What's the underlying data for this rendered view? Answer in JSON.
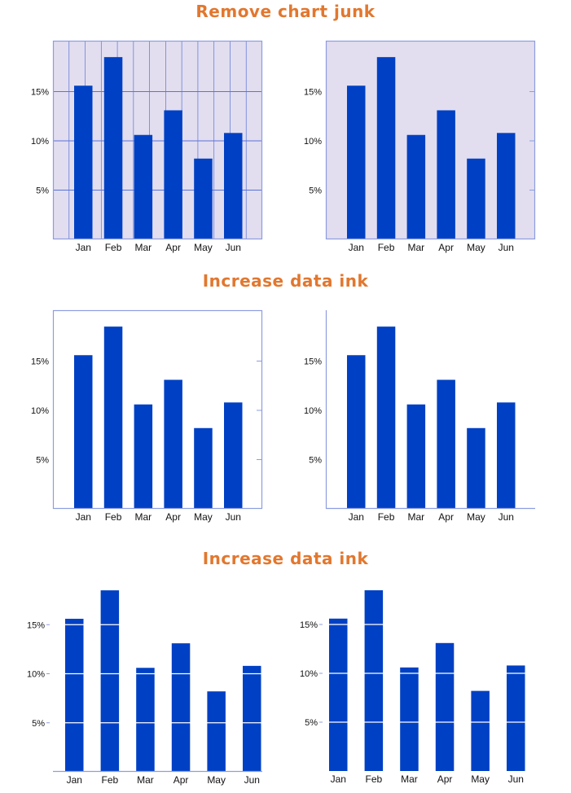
{
  "colors": {
    "title": "#e2772e",
    "bar": "#0040c4",
    "panel_bg": "#e2def0",
    "frame": "#8d9de0",
    "grid": "#5a73d6",
    "tick_text": "#111111",
    "white_gridline": "#ffffff"
  },
  "sections": [
    {
      "title": "Remove chart junk"
    },
    {
      "title": "Increase data ink"
    },
    {
      "title": "Increase data ink"
    }
  ],
  "chart_data": [
    {
      "type": "bar",
      "title": "",
      "xlabel": "",
      "ylabel": "",
      "categories": [
        "Jan",
        "Feb",
        "Mar",
        "Apr",
        "May",
        "Jun"
      ],
      "values": [
        15.6,
        18.5,
        10.6,
        13.1,
        8.2,
        10.8
      ],
      "ylim": [
        0,
        20
      ],
      "yticks": [
        5,
        10,
        15
      ],
      "ytick_labels": [
        "5%",
        "10%",
        "15%"
      ],
      "background": "shaded",
      "frame": "box",
      "grid": "horizontal and vertical"
    },
    {
      "type": "bar",
      "title": "",
      "xlabel": "",
      "ylabel": "",
      "categories": [
        "Jan",
        "Feb",
        "Mar",
        "Apr",
        "May",
        "Jun"
      ],
      "values": [
        15.6,
        18.5,
        10.6,
        13.1,
        8.2,
        10.8
      ],
      "ylim": [
        0,
        20
      ],
      "yticks": [
        5,
        10,
        15
      ],
      "ytick_labels": [
        "5%",
        "10%",
        "15%"
      ],
      "background": "shaded",
      "frame": "box",
      "grid": "none"
    },
    {
      "type": "bar",
      "title": "",
      "xlabel": "",
      "ylabel": "",
      "categories": [
        "Jan",
        "Feb",
        "Mar",
        "Apr",
        "May",
        "Jun"
      ],
      "values": [
        15.6,
        18.5,
        10.6,
        13.1,
        8.2,
        10.8
      ],
      "ylim": [
        0,
        20
      ],
      "yticks": [
        5,
        10,
        15
      ],
      "ytick_labels": [
        "5%",
        "10%",
        "15%"
      ],
      "background": "white",
      "frame": "box",
      "grid": "none"
    },
    {
      "type": "bar",
      "title": "",
      "xlabel": "",
      "ylabel": "",
      "categories": [
        "Jan",
        "Feb",
        "Mar",
        "Apr",
        "May",
        "Jun"
      ],
      "values": [
        15.6,
        18.5,
        10.6,
        13.1,
        8.2,
        10.8
      ],
      "ylim": [
        0,
        20
      ],
      "yticks": [
        5,
        10,
        15
      ],
      "ytick_labels": [
        "5%",
        "10%",
        "15%"
      ],
      "background": "white",
      "frame": "left and bottom axes",
      "grid": "none"
    },
    {
      "type": "bar",
      "title": "",
      "xlabel": "",
      "ylabel": "",
      "categories": [
        "Jan",
        "Feb",
        "Mar",
        "Apr",
        "May",
        "Jun"
      ],
      "values": [
        15.6,
        18.5,
        10.6,
        13.1,
        8.2,
        10.8
      ],
      "ylim": [
        0,
        20
      ],
      "yticks": [
        5,
        10,
        15
      ],
      "ytick_labels": [
        "5%",
        "10%",
        "15%"
      ],
      "background": "white",
      "frame": "bottom axis only",
      "grid": "white lines across bars"
    },
    {
      "type": "bar",
      "title": "",
      "xlabel": "",
      "ylabel": "",
      "categories": [
        "Jan",
        "Feb",
        "Mar",
        "Apr",
        "May",
        "Jun"
      ],
      "values": [
        15.6,
        18.5,
        10.6,
        13.1,
        8.2,
        10.8
      ],
      "ylim": [
        0,
        20
      ],
      "yticks": [
        5,
        10,
        15
      ],
      "ytick_labels": [
        "5%",
        "10%",
        "15%"
      ],
      "background": "white",
      "frame": "none",
      "grid": "white lines across bars"
    }
  ]
}
